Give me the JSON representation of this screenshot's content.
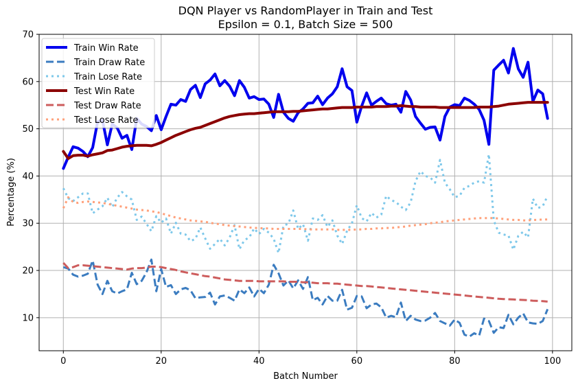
{
  "chart_data": {
    "type": "line",
    "title": "DQN Player vs RandomPlayer in Train and Test",
    "subtitle": "Epsilon = 0.1, Batch Size = 500",
    "xlabel": "Batch Number",
    "ylabel": "Percentage (%)",
    "xlim": [
      -4.95,
      103.95
    ],
    "ylim": [
      3,
      70
    ],
    "xticks": [
      0,
      20,
      40,
      60,
      80,
      100
    ],
    "yticks": [
      10,
      20,
      30,
      40,
      50,
      60,
      70
    ],
    "grid": true,
    "legend_position": "top-left",
    "x": [
      0,
      1,
      2,
      3,
      4,
      5,
      6,
      7,
      8,
      9,
      10,
      11,
      12,
      13,
      14,
      15,
      16,
      17,
      18,
      19,
      20,
      21,
      22,
      23,
      24,
      25,
      26,
      27,
      28,
      29,
      30,
      31,
      32,
      33,
      34,
      35,
      36,
      37,
      38,
      39,
      40,
      41,
      42,
      43,
      44,
      45,
      46,
      47,
      48,
      49,
      50,
      51,
      52,
      53,
      54,
      55,
      56,
      57,
      58,
      59,
      60,
      61,
      62,
      63,
      64,
      65,
      66,
      67,
      68,
      69,
      70,
      71,
      72,
      73,
      74,
      75,
      76,
      77,
      78,
      79,
      80,
      81,
      82,
      83,
      84,
      85,
      86,
      87,
      88,
      89,
      90,
      91,
      92,
      93,
      94,
      95,
      96,
      97,
      98,
      99
    ],
    "series": [
      {
        "name": "Train Win Rate",
        "color": "#0000ee",
        "style": "solid",
        "width": 4,
        "values": [
          41.6,
          44.0,
          46.2,
          45.9,
          45.2,
          44.1,
          46.0,
          51.5,
          51.8,
          46.6,
          51.0,
          50.2,
          48.0,
          48.6,
          45.6,
          52.2,
          51.0,
          50.5,
          49.6,
          52.8,
          49.8,
          52.6,
          55.2,
          55.0,
          56.2,
          55.8,
          58.3,
          59.2,
          56.6,
          59.5,
          60.3,
          61.6,
          59.1,
          60.2,
          59.0,
          57.0,
          60.2,
          58.8,
          56.5,
          56.8,
          56.2,
          56.3,
          55.2,
          52.4,
          57.3,
          53.5,
          52.2,
          51.6,
          53.4,
          54.2,
          55.4,
          55.5,
          56.9,
          55.1,
          56.5,
          57.4,
          58.9,
          62.7,
          58.9,
          58.1,
          51.4,
          54.8,
          57.6,
          55.0,
          55.8,
          56.5,
          55.3,
          55.0,
          55.2,
          53.5,
          57.9,
          56.1,
          52.6,
          51.2,
          49.9,
          50.3,
          50.4,
          47.6,
          52.6,
          54.6,
          55.1,
          54.9,
          56.5,
          56.0,
          55.2,
          54.1,
          51.8,
          46.7,
          62.4,
          63.5,
          64.5,
          61.8,
          67.0,
          62.7,
          60.9,
          64.1,
          55.8,
          58.2,
          57.4,
          52.2
        ]
      },
      {
        "name": "Train Draw Rate",
        "color": "#3b7cc0",
        "style": "dashed",
        "width": 3,
        "values": [
          20.7,
          20.4,
          19.1,
          18.7,
          18.9,
          19.3,
          22.1,
          17.0,
          15.0,
          17.8,
          15.6,
          15.1,
          15.6,
          16.0,
          19.5,
          17.1,
          17.8,
          19.6,
          22.3,
          15.6,
          20.3,
          16.5,
          16.9,
          15.0,
          16.0,
          16.3,
          15.8,
          14.1,
          14.3,
          14.4,
          15.3,
          12.8,
          14.5,
          14.7,
          14.2,
          13.6,
          16.0,
          15.2,
          16.4,
          14.5,
          16.1,
          15.2,
          17.0,
          21.2,
          19.4,
          16.8,
          17.9,
          16.2,
          17.9,
          16.1,
          18.6,
          13.7,
          14.2,
          12.8,
          14.6,
          13.6,
          13.6,
          15.9,
          11.7,
          12.1,
          14.6,
          14.5,
          12.0,
          12.8,
          13.0,
          12.2,
          10.0,
          10.4,
          10.1,
          13.2,
          9.3,
          10.4,
          9.6,
          9.3,
          9.4,
          10.0,
          11.0,
          9.3,
          8.8,
          8.3,
          9.6,
          8.9,
          6.4,
          6.0,
          6.7,
          6.2,
          9.8,
          9.3,
          6.8,
          8.0,
          7.8,
          10.6,
          8.6,
          10.0,
          10.9,
          9.0,
          8.8,
          8.7,
          9.3,
          11.8
        ]
      },
      {
        "name": "Train Lose Rate",
        "color": "#7ec8ea",
        "style": "dotted",
        "width": 3,
        "values": [
          37.4,
          35.3,
          34.7,
          35.5,
          36.3,
          36.3,
          32.1,
          32.9,
          33.6,
          35.4,
          33.4,
          35.4,
          36.6,
          35.7,
          35.0,
          30.7,
          31.4,
          29.9,
          28.3,
          31.5,
          30.1,
          31.0,
          27.8,
          30.1,
          27.8,
          27.6,
          26.2,
          26.7,
          29.1,
          26.8,
          24.6,
          25.6,
          26.7,
          25.3,
          27.0,
          29.6,
          24.5,
          26.4,
          27.0,
          28.9,
          27.7,
          28.8,
          28.0,
          26.7,
          23.7,
          29.5,
          29.9,
          32.7,
          28.8,
          29.8,
          26.3,
          31.0,
          30.7,
          31.7,
          29.2,
          30.6,
          27.4,
          25.6,
          28.4,
          30.0,
          33.8,
          31.1,
          30.4,
          32.2,
          31.2,
          31.8,
          35.8,
          34.9,
          34.5,
          33.5,
          32.8,
          34.4,
          38.9,
          41.0,
          40.0,
          39.7,
          38.6,
          43.4,
          38.6,
          37.2,
          35.5,
          35.8,
          37.5,
          37.9,
          38.6,
          38.9,
          38.6,
          44.6,
          30.6,
          28.0,
          27.6,
          27.4,
          24.4,
          27.3,
          28.2,
          27.0,
          35.2,
          33.2,
          33.6,
          35.8
        ]
      },
      {
        "name": "Test Win Rate",
        "color": "#8b0000",
        "style": "solid",
        "width": 4,
        "values": [
          45.2,
          43.7,
          44.3,
          44.4,
          44.4,
          44.2,
          44.5,
          44.7,
          44.9,
          45.4,
          45.5,
          45.8,
          46.1,
          46.3,
          46.4,
          46.5,
          46.5,
          46.5,
          46.4,
          46.7,
          47.1,
          47.6,
          48.1,
          48.6,
          49.0,
          49.4,
          49.8,
          50.1,
          50.3,
          50.7,
          51.1,
          51.5,
          51.9,
          52.3,
          52.6,
          52.8,
          53.0,
          53.1,
          53.2,
          53.2,
          53.3,
          53.4,
          53.5,
          53.6,
          53.6,
          53.6,
          53.6,
          53.7,
          53.7,
          53.8,
          53.9,
          54.0,
          54.1,
          54.2,
          54.2,
          54.3,
          54.4,
          54.5,
          54.5,
          54.5,
          54.6,
          54.6,
          54.6,
          54.6,
          54.7,
          54.7,
          54.7,
          54.8,
          54.8,
          54.9,
          54.8,
          54.7,
          54.7,
          54.6,
          54.6,
          54.6,
          54.6,
          54.5,
          54.5,
          54.5,
          54.5,
          54.5,
          54.5,
          54.5,
          54.5,
          54.6,
          54.6,
          54.6,
          54.7,
          54.8,
          55.0,
          55.2,
          55.3,
          55.4,
          55.5,
          55.6,
          55.6,
          55.6,
          55.6,
          55.6
        ]
      },
      {
        "name": "Test Draw Rate",
        "color": "#cd5c5c",
        "style": "dashed",
        "width": 3,
        "values": [
          21.6,
          20.5,
          20.7,
          21.1,
          21.1,
          21.0,
          20.9,
          20.8,
          20.7,
          20.6,
          20.5,
          20.4,
          20.3,
          20.2,
          20.4,
          20.5,
          20.5,
          20.6,
          20.8,
          20.8,
          20.7,
          20.5,
          20.3,
          20.1,
          19.8,
          19.6,
          19.4,
          19.2,
          19.0,
          18.8,
          18.7,
          18.5,
          18.3,
          18.1,
          18.0,
          17.9,
          17.8,
          17.8,
          17.8,
          17.8,
          17.7,
          17.7,
          17.7,
          17.7,
          17.7,
          17.7,
          17.6,
          17.6,
          17.6,
          17.5,
          17.5,
          17.4,
          17.3,
          17.3,
          17.3,
          17.2,
          17.2,
          17.1,
          17.0,
          16.9,
          16.8,
          16.7,
          16.7,
          16.6,
          16.5,
          16.4,
          16.3,
          16.2,
          16.1,
          16.0,
          15.9,
          15.8,
          15.7,
          15.6,
          15.5,
          15.4,
          15.3,
          15.2,
          15.1,
          15.0,
          14.9,
          14.8,
          14.7,
          14.6,
          14.5,
          14.4,
          14.3,
          14.2,
          14.1,
          14.0,
          13.95,
          13.9,
          13.85,
          13.8,
          13.75,
          13.7,
          13.6,
          13.55,
          13.5,
          13.4
        ]
      },
      {
        "name": "Test Lose Rate",
        "color": "#ffa07a",
        "style": "dotted",
        "width": 3,
        "values": [
          33.2,
          35.5,
          34.5,
          34.3,
          34.5,
          34.6,
          34.5,
          34.4,
          34.3,
          34.1,
          33.9,
          33.7,
          33.5,
          33.3,
          33.1,
          32.9,
          32.8,
          32.7,
          32.5,
          32.4,
          32.1,
          31.8,
          31.5,
          31.2,
          31.0,
          30.8,
          30.6,
          30.5,
          30.4,
          30.3,
          30.1,
          29.9,
          29.8,
          29.6,
          29.5,
          29.4,
          29.3,
          29.2,
          29.1,
          29.0,
          29.0,
          28.9,
          28.9,
          28.8,
          28.8,
          28.8,
          28.8,
          28.8,
          28.8,
          28.8,
          28.7,
          28.7,
          28.7,
          28.7,
          28.7,
          28.7,
          28.6,
          28.6,
          28.6,
          28.6,
          28.7,
          28.7,
          28.8,
          28.8,
          28.9,
          28.9,
          29.0,
          29.0,
          29.1,
          29.2,
          29.3,
          29.5,
          29.6,
          29.7,
          29.8,
          30.0,
          30.1,
          30.2,
          30.4,
          30.5,
          30.6,
          30.7,
          30.8,
          30.9,
          31.0,
          31.1,
          31.1,
          31.1,
          31.1,
          31.0,
          30.9,
          30.8,
          30.7,
          30.7,
          30.6,
          30.6,
          30.7,
          30.7,
          30.8,
          30.8
        ]
      }
    ]
  }
}
